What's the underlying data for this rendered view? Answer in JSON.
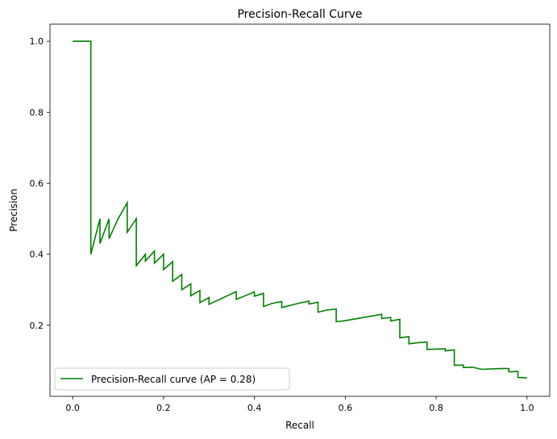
{
  "chart_data": {
    "type": "line",
    "title": "Precision-Recall Curve",
    "xlabel": "Recall",
    "ylabel": "Precision",
    "xlim": [
      -0.05,
      1.05
    ],
    "ylim": [
      0.0,
      1.048
    ],
    "xticks": [
      "0.0",
      "0.2",
      "0.4",
      "0.6",
      "0.8",
      "1.0"
    ],
    "yticks": [
      "0.2",
      "0.4",
      "0.6",
      "0.8",
      "1.0"
    ],
    "grid": false,
    "legend_placement": "lower-left",
    "series": [
      {
        "name": "Precision-Recall curve (AP = 0.28)",
        "color": "#008000",
        "points": [
          [
            0,
            1
          ],
          [
            0.04,
            1
          ],
          [
            0.04,
            0.4
          ],
          [
            0.06,
            0.5
          ],
          [
            0.06,
            0.43
          ],
          [
            0.08,
            0.5
          ],
          [
            0.08,
            0.444
          ],
          [
            0.1,
            0.5
          ],
          [
            0.12,
            0.545
          ],
          [
            0.12,
            0.462
          ],
          [
            0.14,
            0.5
          ],
          [
            0.14,
            0.368
          ],
          [
            0.16,
            0.4
          ],
          [
            0.16,
            0.381
          ],
          [
            0.18,
            0.409
          ],
          [
            0.18,
            0.375
          ],
          [
            0.2,
            0.4
          ],
          [
            0.2,
            0.357
          ],
          [
            0.22,
            0.379
          ],
          [
            0.22,
            0.324
          ],
          [
            0.24,
            0.343
          ],
          [
            0.24,
            0.3
          ],
          [
            0.26,
            0.317
          ],
          [
            0.26,
            0.283
          ],
          [
            0.28,
            0.298
          ],
          [
            0.28,
            0.264
          ],
          [
            0.3,
            0.278
          ],
          [
            0.3,
            0.259
          ],
          [
            0.36,
            0.295
          ],
          [
            0.36,
            0.273
          ],
          [
            0.4,
            0.294
          ],
          [
            0.4,
            0.282
          ],
          [
            0.42,
            0.29
          ],
          [
            0.42,
            0.253
          ],
          [
            0.44,
            0.262
          ],
          [
            0.46,
            0.267
          ],
          [
            0.46,
            0.25
          ],
          [
            0.5,
            0.263
          ],
          [
            0.52,
            0.268
          ],
          [
            0.52,
            0.26
          ],
          [
            0.54,
            0.265
          ],
          [
            0.54,
            0.237
          ],
          [
            0.56,
            0.243
          ],
          [
            0.58,
            0.246
          ],
          [
            0.58,
            0.21
          ],
          [
            0.6,
            0.213
          ],
          [
            0.68,
            0.231
          ],
          [
            0.68,
            0.219
          ],
          [
            0.7,
            0.222
          ],
          [
            0.7,
            0.212
          ],
          [
            0.72,
            0.217
          ],
          [
            0.72,
            0.165
          ],
          [
            0.74,
            0.168
          ],
          [
            0.74,
            0.148
          ],
          [
            0.76,
            0.151
          ],
          [
            0.78,
            0.153
          ],
          [
            0.78,
            0.132
          ],
          [
            0.8,
            0.133
          ],
          [
            0.82,
            0.134
          ],
          [
            0.82,
            0.128
          ],
          [
            0.84,
            0.131
          ],
          [
            0.84,
            0.087
          ],
          [
            0.86,
            0.088
          ],
          [
            0.86,
            0.081
          ],
          [
            0.88,
            0.082
          ],
          [
            0.9,
            0.076
          ],
          [
            0.94,
            0.078
          ],
          [
            0.96,
            0.078
          ],
          [
            0.96,
            0.069
          ],
          [
            0.98,
            0.07
          ],
          [
            0.98,
            0.053
          ],
          [
            1.0,
            0.052
          ]
        ]
      }
    ]
  }
}
